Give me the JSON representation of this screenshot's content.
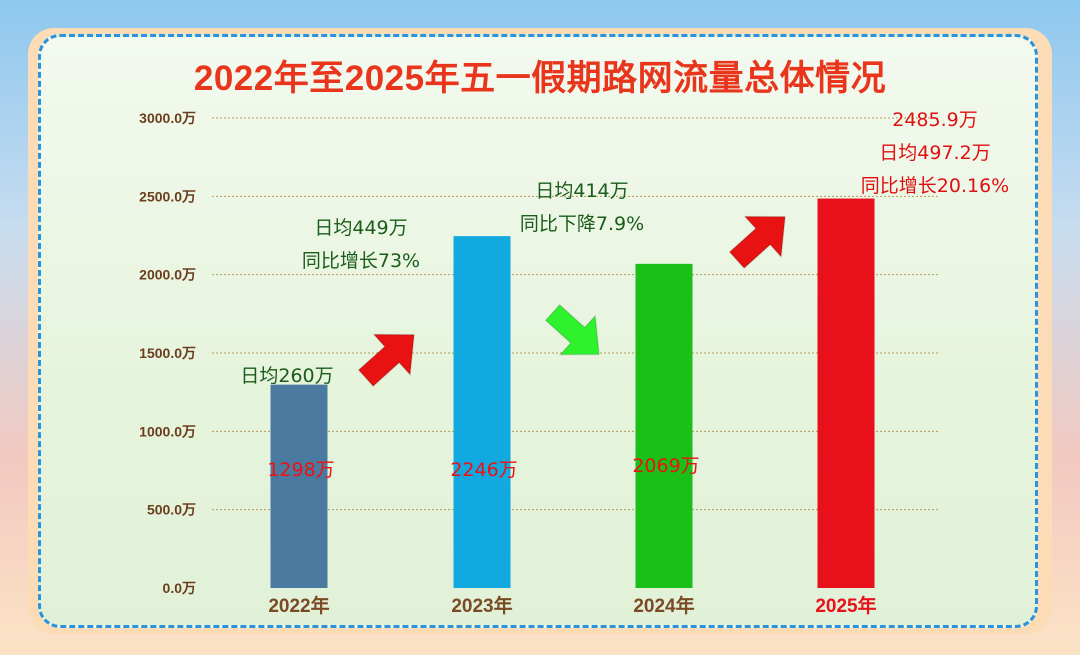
{
  "title": "2022年至2025年五一假期路网流量总体情况",
  "colors": {
    "title": "#e8351c",
    "axis_text": "#6b3e1e",
    "value_label": "#ee1111",
    "note_green": "#1a5c1a",
    "note_red": "#e01010",
    "bars": [
      "#4a7aa0",
      "#12a8e0",
      "#18c018",
      "#e8101a"
    ],
    "x_labels": [
      "#7a4a24",
      "#7a4a24",
      "#7a4a24",
      "#e8101a"
    ]
  },
  "chart_data": {
    "type": "bar",
    "categories": [
      "2022年",
      "2023年",
      "2024年",
      "2025年"
    ],
    "values": [
      1298,
      2246,
      2069,
      2485.9
    ],
    "value_labels": [
      "1298万",
      "2246万",
      "2069万",
      "2485.9万"
    ],
    "ylim": [
      0,
      3000
    ],
    "yticks": [
      0,
      500,
      1000,
      1500,
      2000,
      2500,
      3000
    ],
    "ytick_labels": [
      "0.0万",
      "500.0万",
      "1000.0万",
      "1500.0万",
      "2000.0万",
      "2500.0万",
      "3000.0万"
    ],
    "grid": true,
    "annotations": [
      {
        "category": "2022年",
        "lines": [
          "日均260万"
        ]
      },
      {
        "category": "2023年",
        "lines": [
          "日均449万",
          "同比增长73%"
        ]
      },
      {
        "category": "2024年",
        "lines": [
          "日均414万",
          "同比下降7.9%"
        ]
      },
      {
        "category": "2025年",
        "lines": [
          "日均497.2万",
          "同比增长20.16%"
        ]
      }
    ],
    "trend_arrows": [
      {
        "between": [
          "2022年",
          "2023年"
        ],
        "direction": "up",
        "color": "#e81212"
      },
      {
        "between": [
          "2023年",
          "2024年"
        ],
        "direction": "down",
        "color": "#2ef22e"
      },
      {
        "between": [
          "2024年",
          "2025年"
        ],
        "direction": "up",
        "color": "#e81212"
      }
    ]
  }
}
